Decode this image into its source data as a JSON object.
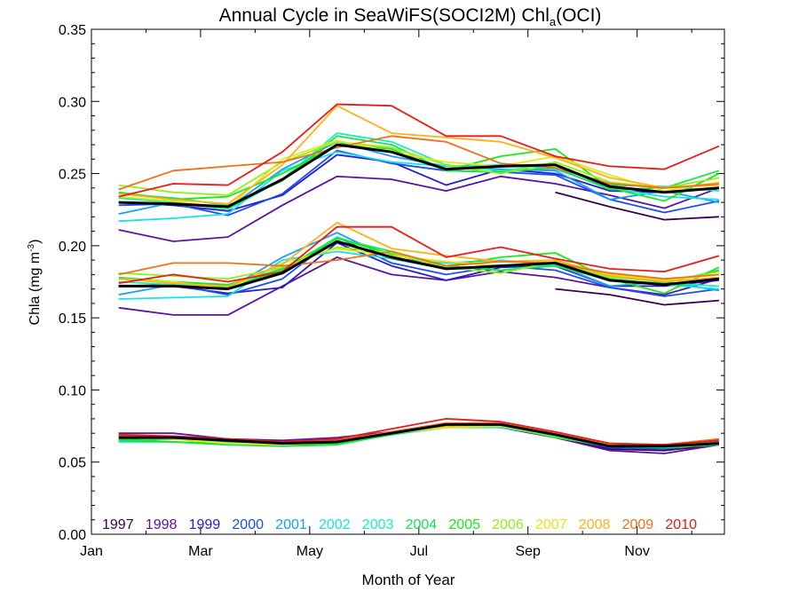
{
  "chart_data": {
    "type": "line",
    "title_main": "Annual Cycle in SeaWiFS(SOCI2M) Chl",
    "title_sub": "a",
    "title_end": "(OCI)",
    "xlabel": "Month of Year",
    "ylabel_main": "Chla (mg m",
    "ylabel_sup": "-3",
    "ylabel_end": ")",
    "xlim": [
      1,
      12.6
    ],
    "ylim": [
      0,
      0.35
    ],
    "xticks": [
      {
        "x": 1,
        "label": "Jan"
      },
      {
        "x": 3,
        "label": "Mar"
      },
      {
        "x": 5,
        "label": "May"
      },
      {
        "x": 7,
        "label": "Jul"
      },
      {
        "x": 9,
        "label": "Sep"
      },
      {
        "x": 11,
        "label": "Nov"
      }
    ],
    "yticks": [
      {
        "y": 0.0,
        "label": "0.00"
      },
      {
        "y": 0.05,
        "label": "0.05"
      },
      {
        "y": 0.1,
        "label": "0.10"
      },
      {
        "y": 0.15,
        "label": "0.15"
      },
      {
        "y": 0.2,
        "label": "0.20"
      },
      {
        "y": 0.25,
        "label": "0.25"
      },
      {
        "y": 0.3,
        "label": "0.30"
      },
      {
        "y": 0.35,
        "label": "0.35"
      }
    ],
    "x": [
      1.5,
      2.5,
      3.5,
      4.5,
      5.5,
      6.5,
      7.5,
      8.5,
      9.5,
      10.5,
      11.5,
      12.5
    ],
    "legend_position": "bottom",
    "mean_color": "#000000",
    "series": [
      {
        "name": "1997",
        "color": "#3a0050",
        "upper": [
          null,
          null,
          null,
          null,
          null,
          null,
          null,
          null,
          0.237,
          0.227,
          0.218,
          0.22
        ],
        "middle": [
          null,
          null,
          null,
          null,
          null,
          null,
          null,
          null,
          0.17,
          0.166,
          0.159,
          0.162
        ],
        "lower": [
          null,
          null,
          null,
          null,
          null,
          null,
          null,
          null,
          0.067,
          0.059,
          0.058,
          0.062
        ]
      },
      {
        "name": "1998",
        "color": "#5a14a0",
        "upper": [
          0.211,
          0.203,
          0.206,
          0.228,
          0.248,
          0.246,
          0.238,
          0.248,
          0.243,
          0.235,
          0.226,
          0.24
        ],
        "middle": [
          0.157,
          0.152,
          0.152,
          0.172,
          0.192,
          0.18,
          0.176,
          0.182,
          0.178,
          0.171,
          0.166,
          0.177
        ],
        "lower": [
          0.07,
          0.07,
          0.066,
          0.065,
          0.067,
          0.071,
          0.075,
          0.074,
          0.067,
          0.058,
          0.056,
          0.062
        ]
      },
      {
        "name": "1999",
        "color": "#2a1ad0",
        "upper": [
          0.23,
          0.228,
          0.224,
          0.235,
          0.263,
          0.258,
          0.242,
          0.253,
          0.25,
          0.238,
          0.237,
          0.24
        ],
        "middle": [
          0.172,
          0.172,
          0.167,
          0.171,
          0.202,
          0.186,
          0.176,
          0.185,
          0.186,
          0.172,
          0.172,
          0.176
        ],
        "lower": [
          0.068,
          0.067,
          0.066,
          0.063,
          0.065,
          0.071,
          0.077,
          0.076,
          0.069,
          0.06,
          0.06,
          0.063
        ]
      },
      {
        "name": "2000",
        "color": "#1a4ef0",
        "upper": [
          0.228,
          0.229,
          0.221,
          0.236,
          0.266,
          0.257,
          0.252,
          0.251,
          0.249,
          0.232,
          0.223,
          0.231
        ],
        "middle": [
          0.172,
          0.173,
          0.166,
          0.177,
          0.206,
          0.188,
          0.18,
          0.186,
          0.183,
          0.171,
          0.165,
          0.17
        ],
        "lower": [
          0.066,
          0.066,
          0.064,
          0.062,
          0.064,
          0.07,
          0.076,
          0.075,
          0.068,
          0.06,
          0.059,
          0.064
        ]
      },
      {
        "name": "2001",
        "color": "#1a9ef5",
        "upper": [
          0.222,
          0.23,
          0.226,
          0.253,
          0.272,
          0.262,
          0.255,
          0.253,
          0.252,
          0.232,
          0.238,
          0.23
        ],
        "middle": [
          0.166,
          0.173,
          0.17,
          0.192,
          0.209,
          0.191,
          0.184,
          0.186,
          0.187,
          0.172,
          0.175,
          0.169
        ],
        "lower": [
          0.065,
          0.066,
          0.064,
          0.062,
          0.064,
          0.07,
          0.075,
          0.075,
          0.068,
          0.061,
          0.061,
          0.064
        ]
      },
      {
        "name": "2002",
        "color": "#1ae0ea",
        "upper": [
          0.217,
          0.219,
          0.222,
          0.252,
          0.265,
          0.258,
          0.255,
          0.256,
          0.253,
          0.24,
          0.234,
          0.232
        ],
        "middle": [
          0.163,
          0.164,
          0.165,
          0.19,
          0.196,
          0.191,
          0.188,
          0.19,
          0.187,
          0.177,
          0.173,
          0.17
        ],
        "lower": [
          0.064,
          0.064,
          0.062,
          0.062,
          0.063,
          0.069,
          0.074,
          0.074,
          0.068,
          0.061,
          0.061,
          0.063
        ]
      },
      {
        "name": "2003",
        "color": "#1af0b0",
        "upper": [
          0.233,
          0.23,
          0.225,
          0.246,
          0.278,
          0.272,
          0.256,
          0.252,
          0.256,
          0.242,
          0.241,
          0.238
        ],
        "middle": [
          0.175,
          0.173,
          0.171,
          0.183,
          0.206,
          0.194,
          0.186,
          0.183,
          0.187,
          0.176,
          0.174,
          0.172
        ],
        "lower": [
          0.066,
          0.066,
          0.063,
          0.062,
          0.063,
          0.069,
          0.075,
          0.075,
          0.068,
          0.061,
          0.061,
          0.063
        ]
      },
      {
        "name": "2004",
        "color": "#1ae052",
        "upper": [
          0.236,
          0.233,
          0.228,
          0.245,
          0.276,
          0.27,
          0.252,
          0.251,
          0.254,
          0.239,
          0.24,
          0.252
        ],
        "middle": [
          0.178,
          0.175,
          0.172,
          0.182,
          0.205,
          0.196,
          0.186,
          0.183,
          0.186,
          0.176,
          0.174,
          0.183
        ],
        "lower": [
          0.065,
          0.064,
          0.062,
          0.061,
          0.062,
          0.069,
          0.075,
          0.075,
          0.067,
          0.061,
          0.06,
          0.062
        ]
      },
      {
        "name": "2005",
        "color": "#1ae81a",
        "upper": [
          0.237,
          0.232,
          0.234,
          0.25,
          0.27,
          0.267,
          0.252,
          0.262,
          0.267,
          0.24,
          0.231,
          0.25
        ],
        "middle": [
          0.177,
          0.175,
          0.173,
          0.184,
          0.205,
          0.194,
          0.186,
          0.192,
          0.195,
          0.177,
          0.167,
          0.185
        ],
        "lower": [
          0.066,
          0.064,
          0.063,
          0.062,
          0.063,
          0.07,
          0.076,
          0.075,
          0.069,
          0.062,
          0.061,
          0.062
        ]
      },
      {
        "name": "2006",
        "color": "#90f01a",
        "upper": [
          0.242,
          0.237,
          0.235,
          0.258,
          0.272,
          0.268,
          0.256,
          0.25,
          0.258,
          0.244,
          0.24,
          0.247
        ],
        "middle": [
          0.181,
          0.179,
          0.177,
          0.185,
          0.199,
          0.195,
          0.185,
          0.181,
          0.189,
          0.178,
          0.175,
          0.182
        ],
        "lower": [
          0.067,
          0.066,
          0.063,
          0.062,
          0.064,
          0.07,
          0.075,
          0.075,
          0.068,
          0.061,
          0.061,
          0.063
        ]
      },
      {
        "name": "2007",
        "color": "#e0e81a",
        "upper": [
          0.234,
          0.231,
          0.226,
          0.26,
          0.273,
          0.265,
          0.258,
          0.255,
          0.262,
          0.249,
          0.238,
          0.244
        ],
        "middle": [
          0.177,
          0.175,
          0.17,
          0.188,
          0.198,
          0.193,
          0.189,
          0.186,
          0.19,
          0.18,
          0.176,
          0.18
        ],
        "lower": [
          0.067,
          0.066,
          0.063,
          0.062,
          0.064,
          0.07,
          0.074,
          0.075,
          0.069,
          0.062,
          0.062,
          0.063
        ]
      },
      {
        "name": "2008",
        "color": "#ffb01a",
        "upper": [
          0.236,
          0.232,
          0.229,
          0.256,
          0.297,
          0.278,
          0.275,
          0.272,
          0.261,
          0.247,
          0.24,
          0.242
        ],
        "middle": [
          0.177,
          0.174,
          0.172,
          0.187,
          0.216,
          0.198,
          0.193,
          0.189,
          0.19,
          0.179,
          0.175,
          0.178
        ],
        "lower": [
          0.068,
          0.067,
          0.065,
          0.063,
          0.065,
          0.071,
          0.075,
          0.076,
          0.07,
          0.062,
          0.062,
          0.066
        ]
      },
      {
        "name": "2009",
        "color": "#f0701a",
        "upper": [
          0.239,
          0.252,
          0.255,
          0.258,
          0.268,
          0.276,
          0.272,
          0.257,
          0.254,
          0.243,
          0.24,
          0.243
        ],
        "middle": [
          0.18,
          0.188,
          0.188,
          0.186,
          0.19,
          0.196,
          0.186,
          0.189,
          0.188,
          0.181,
          0.177,
          0.18
        ],
        "lower": [
          0.068,
          0.068,
          0.066,
          0.063,
          0.065,
          0.071,
          0.077,
          0.077,
          0.07,
          0.063,
          0.062,
          0.066
        ]
      },
      {
        "name": "2010",
        "color": "#e81a1a",
        "upper": [
          0.234,
          0.243,
          0.242,
          0.265,
          0.298,
          0.297,
          0.276,
          0.276,
          0.262,
          0.255,
          0.253,
          0.269
        ],
        "middle": [
          0.174,
          0.18,
          0.175,
          0.182,
          0.213,
          0.213,
          0.192,
          0.199,
          0.191,
          0.184,
          0.182,
          0.193
        ],
        "lower": [
          0.069,
          0.068,
          0.066,
          0.064,
          0.066,
          0.073,
          0.08,
          0.078,
          0.071,
          0.063,
          0.062,
          0.065
        ]
      }
    ],
    "mean": {
      "upper": [
        0.23,
        0.229,
        0.227,
        0.246,
        0.27,
        0.265,
        0.253,
        0.255,
        0.256,
        0.241,
        0.237,
        0.24
      ],
      "middle": [
        0.172,
        0.172,
        0.17,
        0.181,
        0.203,
        0.192,
        0.184,
        0.186,
        0.188,
        0.176,
        0.173,
        0.177
      ],
      "lower": [
        0.067,
        0.067,
        0.065,
        0.063,
        0.064,
        0.07,
        0.076,
        0.076,
        0.069,
        0.061,
        0.061,
        0.063
      ]
    }
  }
}
